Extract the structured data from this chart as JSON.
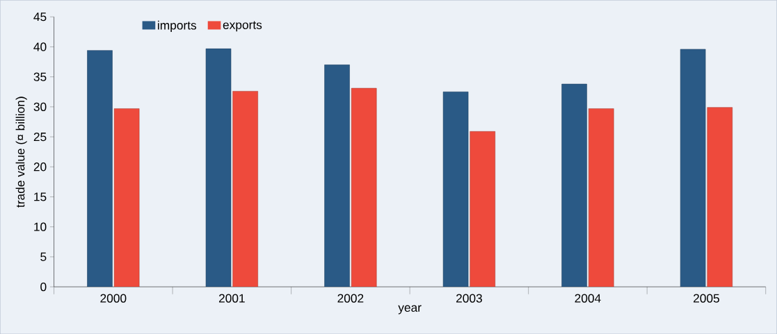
{
  "chart_data": {
    "type": "bar",
    "xlabel": "year",
    "ylabel": "trade value (¤ billion)",
    "categories": [
      "2000",
      "2001",
      "2002",
      "2003",
      "2004",
      "2005"
    ],
    "series": [
      {
        "name": "imports",
        "color": "#2a5a86",
        "values": [
          39.4,
          39.7,
          37.0,
          32.5,
          33.8,
          39.6
        ]
      },
      {
        "name": "exports",
        "color": "#ee4a3c",
        "values": [
          29.7,
          32.6,
          33.1,
          25.9,
          29.7,
          29.9
        ]
      }
    ],
    "ylim": [
      0,
      45
    ],
    "yticks": [
      0,
      5,
      10,
      15,
      20,
      25,
      30,
      35,
      40,
      45
    ],
    "legend": "top left"
  }
}
